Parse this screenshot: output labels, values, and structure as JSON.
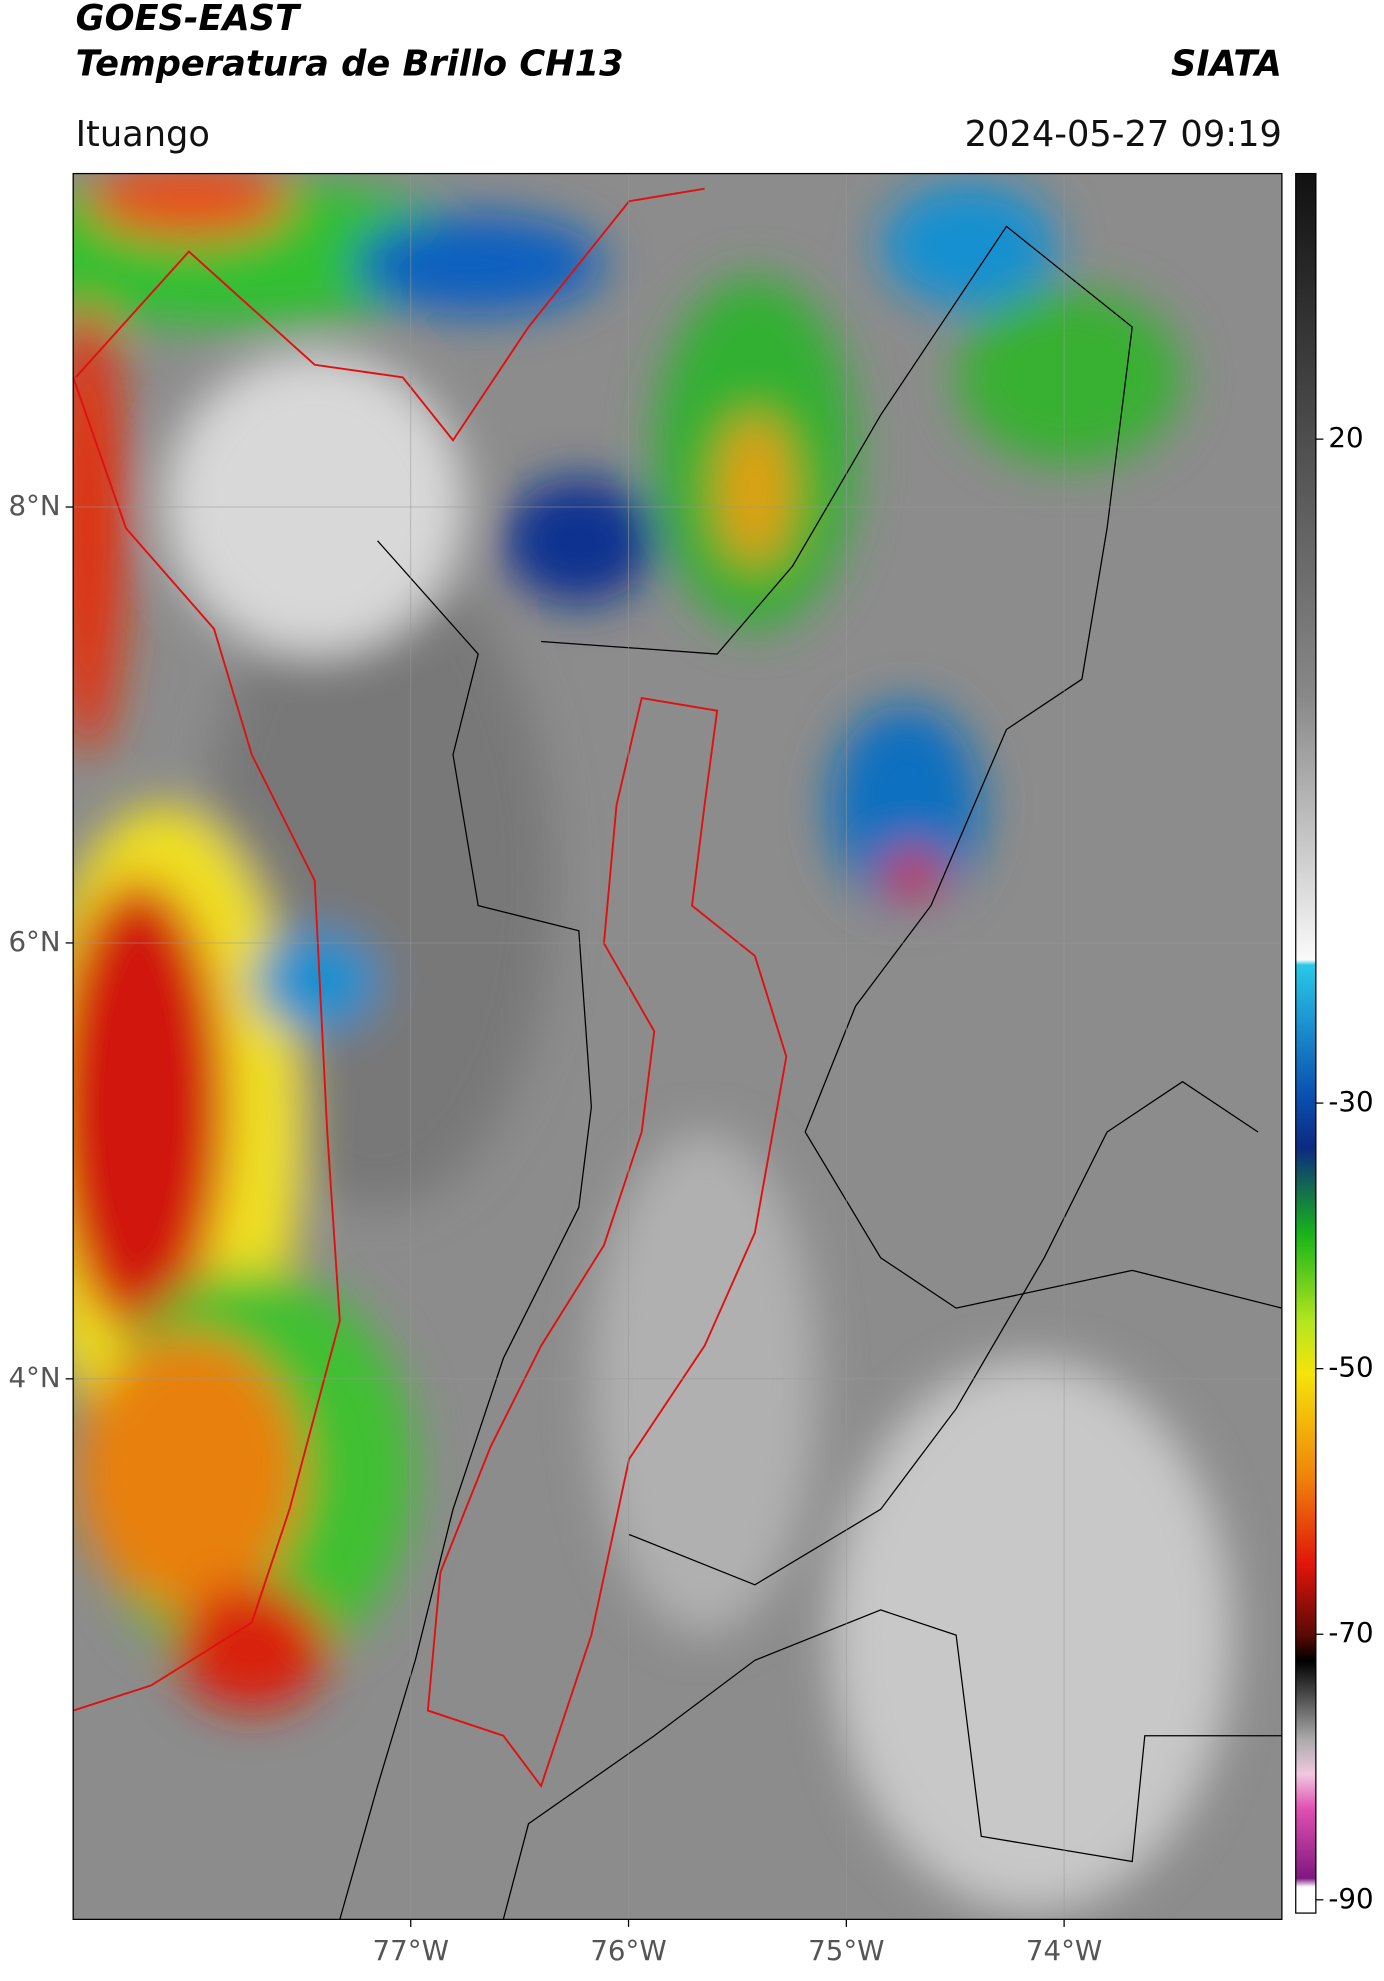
{
  "header": {
    "title": "GOES-EAST",
    "subtitle": "Temperatura de Brillo CH13",
    "source": "SIATA",
    "location": "Ituango",
    "datetime": "2024-05-27 09:19"
  },
  "map": {
    "xlim": [
      -78.55,
      -73.0
    ],
    "ylim": [
      1.52,
      9.53
    ],
    "xticks": [
      {
        "value": -77,
        "label": "77°W"
      },
      {
        "value": -76,
        "label": "76°W"
      },
      {
        "value": -75,
        "label": "75°W"
      },
      {
        "value": -74,
        "label": "74°W"
      }
    ],
    "yticks": [
      {
        "value": 8,
        "label": "8°N"
      },
      {
        "value": 6,
        "label": "6°N"
      },
      {
        "value": 4,
        "label": "4°N"
      }
    ],
    "grid": true
  },
  "colorbar": {
    "lim": [
      -91,
      40
    ],
    "ticks": [
      20,
      -30,
      -50,
      -70,
      -90
    ]
  }
}
